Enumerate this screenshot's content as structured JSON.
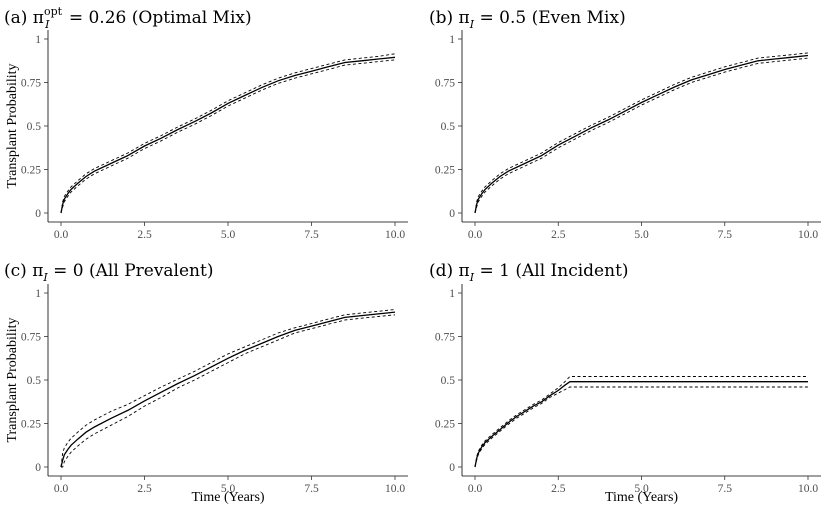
{
  "chart_data": [
    {
      "type": "line",
      "title_main": "(a) π",
      "title_sub": "I",
      "title_sup": "opt",
      "title_rest": " = 0.26 (Optimal Mix)",
      "xlabel": "",
      "ylabel": "Transplant Probability",
      "xlim": [
        0,
        10
      ],
      "ylim": [
        0,
        1
      ],
      "x_ticks": [
        0,
        2.5,
        5,
        7.5,
        10
      ],
      "x_tick_labels": [
        "0.0",
        "2.5",
        "5.0",
        "7.5",
        "10.0"
      ],
      "y_ticks": [
        0,
        0.25,
        0.5,
        0.75,
        1
      ],
      "y_tick_labels": [
        "0",
        "0.25",
        "0.5",
        "0.75",
        "1"
      ],
      "series": [
        {
          "name": "estimate",
          "style": "solid",
          "x": [
            0,
            0.05,
            0.1,
            0.2,
            0.3,
            0.5,
            0.75,
            1,
            1.5,
            2,
            2.5,
            3,
            3.5,
            4,
            4.5,
            5,
            5.5,
            6,
            6.5,
            7,
            7.5,
            8,
            8.5,
            9,
            9.5,
            10
          ],
          "values": [
            0,
            0.05,
            0.08,
            0.11,
            0.135,
            0.17,
            0.21,
            0.24,
            0.285,
            0.33,
            0.385,
            0.43,
            0.48,
            0.525,
            0.575,
            0.63,
            0.675,
            0.72,
            0.76,
            0.79,
            0.815,
            0.84,
            0.865,
            0.875,
            0.885,
            0.895
          ]
        },
        {
          "name": "upper",
          "style": "dashed",
          "x": [
            0,
            0.05,
            0.1,
            0.2,
            0.3,
            0.5,
            0.75,
            1,
            1.5,
            2,
            2.5,
            3,
            3.5,
            4,
            4.5,
            5,
            5.5,
            6,
            6.5,
            7,
            7.5,
            8,
            8.5,
            9,
            9.5,
            10
          ],
          "values": [
            0,
            0.065,
            0.095,
            0.125,
            0.15,
            0.185,
            0.225,
            0.255,
            0.3,
            0.345,
            0.4,
            0.445,
            0.495,
            0.54,
            0.59,
            0.645,
            0.69,
            0.735,
            0.775,
            0.805,
            0.83,
            0.855,
            0.88,
            0.89,
            0.9,
            0.915
          ]
        },
        {
          "name": "lower",
          "style": "dashed",
          "x": [
            0,
            0.05,
            0.1,
            0.2,
            0.3,
            0.5,
            0.75,
            1,
            1.5,
            2,
            2.5,
            3,
            3.5,
            4,
            4.5,
            5,
            5.5,
            6,
            6.5,
            7,
            7.5,
            8,
            8.5,
            9,
            9.5,
            10
          ],
          "values": [
            0,
            0.035,
            0.065,
            0.095,
            0.12,
            0.155,
            0.195,
            0.225,
            0.27,
            0.315,
            0.37,
            0.415,
            0.465,
            0.51,
            0.56,
            0.615,
            0.66,
            0.705,
            0.745,
            0.775,
            0.8,
            0.825,
            0.85,
            0.86,
            0.87,
            0.88
          ]
        }
      ]
    },
    {
      "type": "line",
      "title_main": "(b) π",
      "title_sub": "I",
      "title_sup": "",
      "title_rest": " = 0.5 (Even Mix)",
      "xlabel": "",
      "ylabel": "",
      "xlim": [
        0,
        10
      ],
      "ylim": [
        0,
        1
      ],
      "x_ticks": [
        0,
        2.5,
        5,
        7.5,
        10
      ],
      "x_tick_labels": [
        "0.0",
        "2.5",
        "5.0",
        "7.5",
        "10.0"
      ],
      "y_ticks": [
        0,
        0.25,
        0.5,
        0.75,
        1
      ],
      "y_tick_labels": [
        "0",
        "0.25",
        "0.5",
        "0.75",
        "1"
      ],
      "series": [
        {
          "name": "estimate",
          "style": "solid",
          "x": [
            0,
            0.05,
            0.1,
            0.2,
            0.3,
            0.5,
            0.75,
            1,
            1.5,
            2,
            2.5,
            3,
            3.5,
            4,
            4.5,
            5,
            5.5,
            6,
            6.5,
            7,
            7.5,
            8,
            8.5,
            9,
            9.5,
            10
          ],
          "values": [
            0,
            0.05,
            0.08,
            0.11,
            0.135,
            0.17,
            0.21,
            0.24,
            0.285,
            0.33,
            0.39,
            0.44,
            0.49,
            0.535,
            0.585,
            0.635,
            0.68,
            0.725,
            0.765,
            0.795,
            0.825,
            0.85,
            0.875,
            0.885,
            0.895,
            0.905
          ]
        },
        {
          "name": "upper",
          "style": "dashed",
          "x": [
            0,
            0.05,
            0.1,
            0.2,
            0.3,
            0.5,
            0.75,
            1,
            1.5,
            2,
            2.5,
            3,
            3.5,
            4,
            4.5,
            5,
            5.5,
            6,
            6.5,
            7,
            7.5,
            8,
            8.5,
            9,
            9.5,
            10
          ],
          "values": [
            0,
            0.065,
            0.095,
            0.125,
            0.15,
            0.185,
            0.225,
            0.255,
            0.3,
            0.345,
            0.405,
            0.455,
            0.505,
            0.55,
            0.6,
            0.65,
            0.695,
            0.74,
            0.78,
            0.81,
            0.84,
            0.865,
            0.89,
            0.9,
            0.91,
            0.92
          ]
        },
        {
          "name": "lower",
          "style": "dashed",
          "x": [
            0,
            0.05,
            0.1,
            0.2,
            0.3,
            0.5,
            0.75,
            1,
            1.5,
            2,
            2.5,
            3,
            3.5,
            4,
            4.5,
            5,
            5.5,
            6,
            6.5,
            7,
            7.5,
            8,
            8.5,
            9,
            9.5,
            10
          ],
          "values": [
            0,
            0.035,
            0.065,
            0.095,
            0.12,
            0.155,
            0.195,
            0.225,
            0.27,
            0.315,
            0.375,
            0.425,
            0.475,
            0.52,
            0.57,
            0.62,
            0.665,
            0.71,
            0.75,
            0.78,
            0.81,
            0.835,
            0.86,
            0.87,
            0.88,
            0.89
          ]
        }
      ]
    },
    {
      "type": "line",
      "title_main": "(c) π",
      "title_sub": "I",
      "title_sup": "",
      "title_rest": " = 0 (All Prevalent)",
      "xlabel": "Time (Years)",
      "ylabel": "Transplant Probability",
      "xlim": [
        0,
        10
      ],
      "ylim": [
        0,
        1
      ],
      "x_ticks": [
        0,
        2.5,
        5,
        7.5,
        10
      ],
      "x_tick_labels": [
        "0.0",
        "2.5",
        "5.0",
        "7.5",
        "10.0"
      ],
      "y_ticks": [
        0,
        0.25,
        0.5,
        0.75,
        1
      ],
      "y_tick_labels": [
        "0",
        "0.25",
        "0.5",
        "0.75",
        "1"
      ],
      "series": [
        {
          "name": "estimate",
          "style": "solid",
          "x": [
            0,
            0.05,
            0.1,
            0.2,
            0.3,
            0.5,
            0.75,
            1,
            1.5,
            2,
            2.5,
            3,
            3.5,
            4,
            4.5,
            5,
            5.5,
            6,
            6.5,
            7,
            7.5,
            8,
            8.5,
            9,
            9.5,
            10
          ],
          "values": [
            0,
            0.04,
            0.07,
            0.1,
            0.125,
            0.16,
            0.2,
            0.23,
            0.28,
            0.325,
            0.38,
            0.43,
            0.48,
            0.525,
            0.575,
            0.625,
            0.67,
            0.71,
            0.75,
            0.785,
            0.81,
            0.835,
            0.86,
            0.87,
            0.88,
            0.89
          ]
        },
        {
          "name": "upper",
          "style": "dashed",
          "x": [
            0,
            0.05,
            0.1,
            0.2,
            0.3,
            0.5,
            0.75,
            1,
            1.5,
            2,
            2.5,
            3,
            3.5,
            4,
            4.5,
            5,
            5.5,
            6,
            6.5,
            7,
            7.5,
            8,
            8.5,
            9,
            9.5,
            10
          ],
          "values": [
            0,
            0.08,
            0.11,
            0.14,
            0.165,
            0.2,
            0.24,
            0.27,
            0.32,
            0.36,
            0.41,
            0.46,
            0.505,
            0.55,
            0.6,
            0.65,
            0.69,
            0.73,
            0.77,
            0.8,
            0.825,
            0.85,
            0.875,
            0.885,
            0.895,
            0.905
          ]
        },
        {
          "name": "lower",
          "style": "dashed",
          "x": [
            0,
            0.05,
            0.1,
            0.2,
            0.3,
            0.5,
            0.75,
            1,
            1.5,
            2,
            2.5,
            3,
            3.5,
            4,
            4.5,
            5,
            5.5,
            6,
            6.5,
            7,
            7.5,
            8,
            8.5,
            9,
            9.5,
            10
          ],
          "values": [
            0,
            0.0,
            0.03,
            0.06,
            0.085,
            0.12,
            0.16,
            0.19,
            0.24,
            0.29,
            0.35,
            0.4,
            0.455,
            0.5,
            0.55,
            0.6,
            0.65,
            0.69,
            0.73,
            0.77,
            0.795,
            0.82,
            0.845,
            0.855,
            0.865,
            0.875
          ]
        }
      ]
    },
    {
      "type": "line",
      "title_main": "(d) π",
      "title_sub": "I",
      "title_sup": "",
      "title_rest": " = 1 (All Incident)",
      "xlabel": "Time (Years)",
      "ylabel": "",
      "xlim": [
        0,
        10
      ],
      "ylim": [
        0,
        1
      ],
      "x_ticks": [
        0,
        2.5,
        5,
        7.5,
        10
      ],
      "x_tick_labels": [
        "0.0",
        "2.5",
        "5.0",
        "7.5",
        "10.0"
      ],
      "y_ticks": [
        0,
        0.25,
        0.5,
        0.75,
        1
      ],
      "y_tick_labels": [
        "0",
        "0.25",
        "0.5",
        "0.75",
        "1"
      ],
      "series": [
        {
          "name": "estimate",
          "style": "solid",
          "x": [
            0,
            0.05,
            0.1,
            0.2,
            0.3,
            0.5,
            0.75,
            1,
            1.25,
            1.5,
            1.75,
            2,
            2.25,
            2.5,
            2.7,
            2.85,
            3,
            10
          ],
          "values": [
            0,
            0.05,
            0.08,
            0.115,
            0.14,
            0.175,
            0.215,
            0.255,
            0.29,
            0.32,
            0.35,
            0.375,
            0.41,
            0.44,
            0.47,
            0.49,
            0.49,
            0.49
          ]
        },
        {
          "name": "upper",
          "style": "dashed",
          "x": [
            0,
            0.05,
            0.1,
            0.2,
            0.3,
            0.5,
            0.75,
            1,
            1.25,
            1.5,
            1.75,
            2,
            2.25,
            2.5,
            2.7,
            2.85,
            3,
            10
          ],
          "values": [
            0,
            0.06,
            0.09,
            0.125,
            0.15,
            0.185,
            0.225,
            0.265,
            0.3,
            0.33,
            0.36,
            0.385,
            0.42,
            0.455,
            0.49,
            0.52,
            0.52,
            0.52
          ]
        },
        {
          "name": "lower",
          "style": "dashed",
          "x": [
            0,
            0.05,
            0.1,
            0.2,
            0.3,
            0.5,
            0.75,
            1,
            1.25,
            1.5,
            1.75,
            2,
            2.25,
            2.5,
            2.7,
            2.85,
            3,
            10
          ],
          "values": [
            0,
            0.04,
            0.07,
            0.105,
            0.13,
            0.165,
            0.205,
            0.245,
            0.28,
            0.31,
            0.34,
            0.365,
            0.4,
            0.425,
            0.445,
            0.46,
            0.46,
            0.46
          ]
        }
      ]
    }
  ]
}
